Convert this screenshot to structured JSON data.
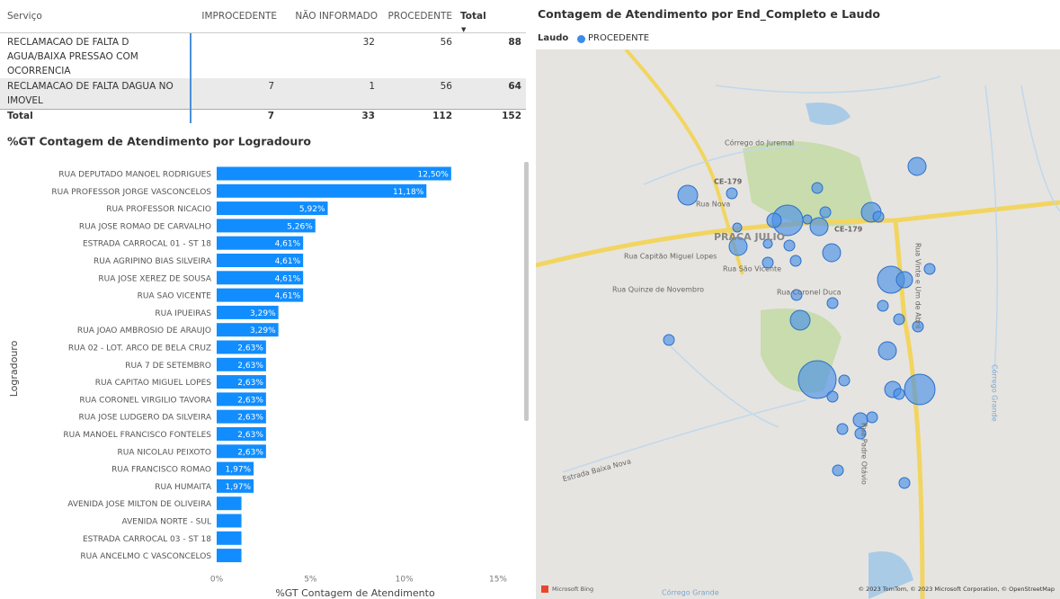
{
  "table": {
    "columns": [
      "Serviço",
      "IMPROCEDENTE",
      "NÃO INFORMADO",
      "PROCEDENTE",
      "Total"
    ],
    "rows": [
      [
        "RECLAMACAO DE FALTA D AGUA/BAIXA PRESSAO COM OCORRENCIA",
        null,
        32,
        56,
        88
      ],
      [
        "RECLAMACAO DE FALTA DAGUA NO IMOVEL",
        7,
        1,
        56,
        64
      ]
    ],
    "total": [
      "Total",
      7,
      33,
      112,
      152
    ]
  },
  "chart_data": {
    "type": "barh",
    "title": "%GT Contagem de Atendimento por Logradouro",
    "x_label": "%GT Contagem de Atendimento",
    "y_label": "Logradouro",
    "color": "#118dff",
    "categories": [
      "RUA DEPUTADO MANOEL RODRIGUES",
      "RUA PROFESSOR JORGE VASCONCELOS",
      "RUA PROFESSOR NICACIO",
      "RUA JOSE ROMAO DE CARVALHO",
      "ESTRADA CARROCAL 01 - ST 18",
      "RUA AGRIPINO BIAS SILVEIRA",
      "RUA JOSE XEREZ DE SOUSA",
      "RUA SAO VICENTE",
      "RUA IPUEIRAS",
      "RUA JOAO AMBROSIO DE ARAUJO",
      "RUA 02 - LOT. ARCO DE BELA CRUZ",
      "RUA 7 DE SETEMBRO",
      "RUA CAPITAO MIGUEL LOPES",
      "RUA CORONEL VIRGILIO TAVORA",
      "RUA JOSE LUDGERO DA SILVEIRA",
      "RUA MANOEL FRANCISCO FONTELES",
      "RUA NICOLAU PEIXOTO",
      "RUA FRANCISCO ROMAO",
      "RUA HUMAITA",
      "AVENIDA JOSE MILTON DE OLIVEIRA",
      "AVENIDA NORTE - SUL",
      "ESTRADA CARROCAL 03 - ST 18",
      "RUA ANCELMO C VASCONCELOS"
    ],
    "values": [
      12.5,
      11.18,
      5.92,
      5.26,
      4.61,
      4.61,
      4.61,
      4.61,
      3.29,
      3.29,
      2.63,
      2.63,
      2.63,
      2.63,
      2.63,
      2.63,
      2.63,
      1.97,
      1.97,
      1.32,
      1.32,
      1.32,
      1.32
    ],
    "value_labels": [
      "12,50%",
      "11,18%",
      "5,92%",
      "5,26%",
      "4,61%",
      "4,61%",
      "4,61%",
      "4,61%",
      "3,29%",
      "3,29%",
      "2,63%",
      "2,63%",
      "2,63%",
      "2,63%",
      "2,63%",
      "2,63%",
      "2,63%",
      "1,97%",
      "1,97%",
      null,
      null,
      null,
      null
    ],
    "xlim": [
      0,
      15
    ],
    "xticks": [
      {
        "value": 0,
        "label": "0%"
      },
      {
        "value": 5,
        "label": "5%"
      },
      {
        "value": 10,
        "label": "10%"
      },
      {
        "value": 15,
        "label": "15%"
      }
    ]
  },
  "map": {
    "title": "Contagem de Atendimento por End_Completo e Laudo",
    "legend_title": "Laudo",
    "legend_item": "PROCEDENTE",
    "labels": [
      "Córrego do Juremal",
      "CE-179",
      "Rua Nova",
      "PRACA JULIO",
      "CE-179",
      "Rua Capitão Miguel Lopes",
      "Rua São Vicente",
      "Rua Quinze de Novembro",
      "Rua Coronel Duca",
      "Rua Vinte e Um de Abril",
      "Estrada Baixa Nova",
      "Rua Padre Otávio",
      "Córrego Grande",
      "Córrego Grande"
    ],
    "logo": "Microsoft Bing",
    "attribution": "© 2023 TomTom, © 2023 Microsoft Corporation, © OpenStreetMap"
  }
}
